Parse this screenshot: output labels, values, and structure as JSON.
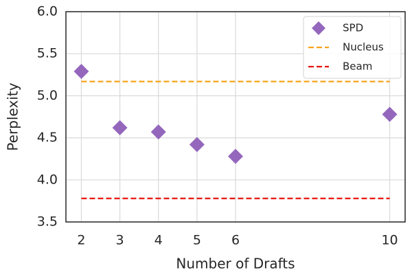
{
  "chart_data": {
    "type": "scatter",
    "xlabel": "Number of Drafts",
    "ylabel": "Perplexity",
    "xlim": [
      1.6,
      10.4
    ],
    "xticks": [
      2,
      3,
      4,
      5,
      6,
      10
    ],
    "ylim": [
      3.5,
      6.0
    ],
    "yticks": [
      3.5,
      {
        "value": 4,
        "label": "4.0"
      },
      4.5,
      {
        "value": 5,
        "label": "5.0"
      },
      5.5,
      {
        "value": 6,
        "label": "6.0"
      }
    ],
    "grid": true,
    "legend": "upper right",
    "series": [
      {
        "name": "SPD",
        "type": "scatter",
        "color": "#9467bd",
        "x": [
          2,
          3,
          4,
          5,
          6,
          10
        ],
        "values": [
          5.29,
          4.62,
          4.57,
          4.42,
          4.28,
          4.78
        ]
      },
      {
        "name": "Nucleus",
        "type": "line",
        "dash": true,
        "color": "#f5a31a",
        "x": [
          2,
          10
        ],
        "values": [
          5.17,
          5.17
        ]
      },
      {
        "name": "Beam",
        "type": "line",
        "dash": true,
        "color": "#e8120c",
        "x": [
          2,
          10
        ],
        "values": [
          3.78,
          3.78
        ]
      }
    ]
  }
}
